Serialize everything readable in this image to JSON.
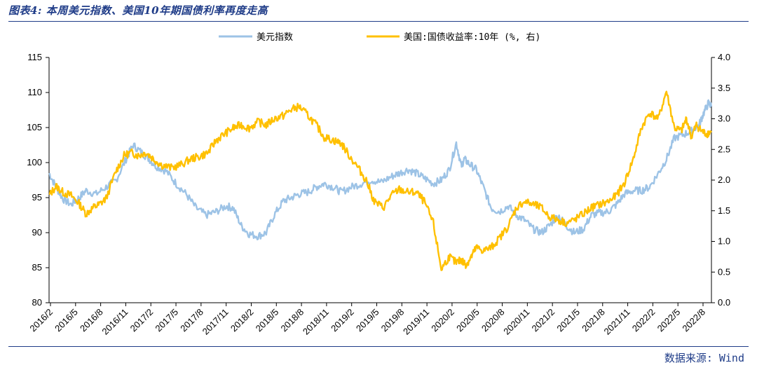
{
  "title": "图表4: 本周美元指数、美国10年期国债利率再度走高",
  "source": "数据来源: Wind",
  "colors": {
    "dxy": "#9dc3e6",
    "yield": "#ffc000",
    "axis": "#000000",
    "frame": "#1f3c88"
  },
  "chart_data": {
    "type": "line",
    "title": "图表4: 本周美元指数、美国10年期国债利率再度走高",
    "legend_position": "top-center",
    "x_tick_labels": [
      "2016/2",
      "2016/5",
      "2016/8",
      "2016/11",
      "2017/2",
      "2017/5",
      "2017/8",
      "2017/11",
      "2018/2",
      "2018/5",
      "2018/8",
      "2018/11",
      "2019/2",
      "2019/5",
      "2019/8",
      "2019/11",
      "2020/2",
      "2020/5",
      "2020/8",
      "2020/11",
      "2021/2",
      "2021/5",
      "2021/8",
      "2021/11",
      "2022/2",
      "2022/5",
      "2022/8"
    ],
    "x_range": [
      2016.08,
      2022.7
    ],
    "left_axis": {
      "ylim": [
        80,
        115
      ],
      "ticks": [
        "80",
        "85",
        "90",
        "95",
        "100",
        "105",
        "110",
        "115"
      ]
    },
    "right_axis": {
      "ylim": [
        0.0,
        4.0
      ],
      "ticks": [
        "0.0",
        "0.5",
        "1.0",
        "1.5",
        "2.0",
        "2.5",
        "3.0",
        "3.5",
        "4.0"
      ]
    },
    "series": [
      {
        "name": "美元指数",
        "axis": "left",
        "x": [
          2016.08,
          2016.15,
          2016.22,
          2016.3,
          2016.38,
          2016.45,
          2016.55,
          2016.65,
          2016.75,
          2016.85,
          2016.92,
          2017.0,
          2017.08,
          2017.15,
          2017.25,
          2017.35,
          2017.45,
          2017.55,
          2017.65,
          2017.75,
          2017.85,
          2017.92,
          2018.0,
          2018.08,
          2018.17,
          2018.25,
          2018.33,
          2018.42,
          2018.5,
          2018.58,
          2018.67,
          2018.75,
          2018.83,
          2018.92,
          2019.0,
          2019.1,
          2019.2,
          2019.3,
          2019.4,
          2019.5,
          2019.58,
          2019.67,
          2019.75,
          2019.83,
          2019.92,
          2020.0,
          2020.08,
          2020.15,
          2020.2,
          2020.23,
          2020.28,
          2020.35,
          2020.42,
          2020.5,
          2020.58,
          2020.67,
          2020.75,
          2020.83,
          2020.92,
          2021.0,
          2021.08,
          2021.17,
          2021.25,
          2021.33,
          2021.42,
          2021.5,
          2021.58,
          2021.67,
          2021.75,
          2021.83,
          2021.92,
          2022.0,
          2022.08,
          2022.17,
          2022.25,
          2022.33,
          2022.42,
          2022.5,
          2022.58,
          2022.62,
          2022.67,
          2022.7
        ],
        "values": [
          98.5,
          96.5,
          94.8,
          94.0,
          95.0,
          96.0,
          95.5,
          96.5,
          97.5,
          100.5,
          102.5,
          101.5,
          100.5,
          99.5,
          98.8,
          97.0,
          95.5,
          93.5,
          92.5,
          93.0,
          93.8,
          93.5,
          91.0,
          89.8,
          89.5,
          90.0,
          92.5,
          94.5,
          95.0,
          95.5,
          95.8,
          96.5,
          97.0,
          96.5,
          95.8,
          96.5,
          97.0,
          97.5,
          97.2,
          98.0,
          98.5,
          99.0,
          98.5,
          97.8,
          97.0,
          97.5,
          99.0,
          102.8,
          99.5,
          100.5,
          99.8,
          99.0,
          96.5,
          93.5,
          93.0,
          93.8,
          92.5,
          91.8,
          90.5,
          90.0,
          91.0,
          92.5,
          91.0,
          90.0,
          90.5,
          92.5,
          92.8,
          93.0,
          94.0,
          95.5,
          96.0,
          96.0,
          96.5,
          98.5,
          100.5,
          103.5,
          104.0,
          104.5,
          105.5,
          107.0,
          108.5,
          108.0
        ]
      },
      {
        "name": "美国:国债收益率:10年 (%, 右)",
        "axis": "right",
        "x": [
          2016.08,
          2016.15,
          2016.22,
          2016.3,
          2016.38,
          2016.45,
          2016.52,
          2016.58,
          2016.65,
          2016.75,
          2016.83,
          2016.9,
          2016.97,
          2017.05,
          2017.12,
          2017.2,
          2017.3,
          2017.4,
          2017.5,
          2017.58,
          2017.67,
          2017.75,
          2017.83,
          2017.92,
          2018.0,
          2018.08,
          2018.17,
          2018.25,
          2018.33,
          2018.42,
          2018.5,
          2018.58,
          2018.67,
          2018.75,
          2018.83,
          2018.92,
          2019.0,
          2019.08,
          2019.17,
          2019.25,
          2019.33,
          2019.42,
          2019.5,
          2019.58,
          2019.67,
          2019.75,
          2019.83,
          2019.92,
          2020.0,
          2020.08,
          2020.15,
          2020.2,
          2020.22,
          2020.25,
          2020.3,
          2020.35,
          2020.42,
          2020.5,
          2020.58,
          2020.67,
          2020.75,
          2020.83,
          2020.92,
          2021.0,
          2021.08,
          2021.17,
          2021.25,
          2021.33,
          2021.42,
          2021.5,
          2021.58,
          2021.67,
          2021.75,
          2021.83,
          2021.92,
          2022.0,
          2022.08,
          2022.17,
          2022.25,
          2022.33,
          2022.4,
          2022.45,
          2022.5,
          2022.55,
          2022.6,
          2022.65,
          2022.7
        ],
        "values": [
          1.75,
          1.9,
          1.8,
          1.75,
          1.62,
          1.45,
          1.55,
          1.6,
          1.7,
          2.15,
          2.4,
          2.45,
          2.4,
          2.45,
          2.35,
          2.25,
          2.2,
          2.25,
          2.35,
          2.38,
          2.45,
          2.65,
          2.75,
          2.85,
          2.9,
          2.85,
          2.95,
          2.9,
          3.0,
          3.05,
          3.15,
          3.2,
          3.05,
          2.9,
          2.7,
          2.65,
          2.6,
          2.4,
          2.2,
          2.0,
          1.65,
          1.55,
          1.75,
          1.85,
          1.8,
          1.8,
          1.65,
          1.3,
          0.55,
          0.75,
          0.65,
          0.7,
          0.66,
          0.62,
          0.75,
          0.9,
          0.85,
          0.9,
          1.05,
          1.25,
          1.55,
          1.65,
          1.6,
          1.55,
          1.4,
          1.35,
          1.3,
          1.35,
          1.45,
          1.55,
          1.6,
          1.65,
          1.75,
          1.95,
          2.35,
          2.85,
          3.1,
          3.0,
          3.45,
          2.85,
          2.8,
          3.0,
          2.7,
          2.9,
          2.8,
          2.75,
          2.8
        ]
      }
    ]
  }
}
